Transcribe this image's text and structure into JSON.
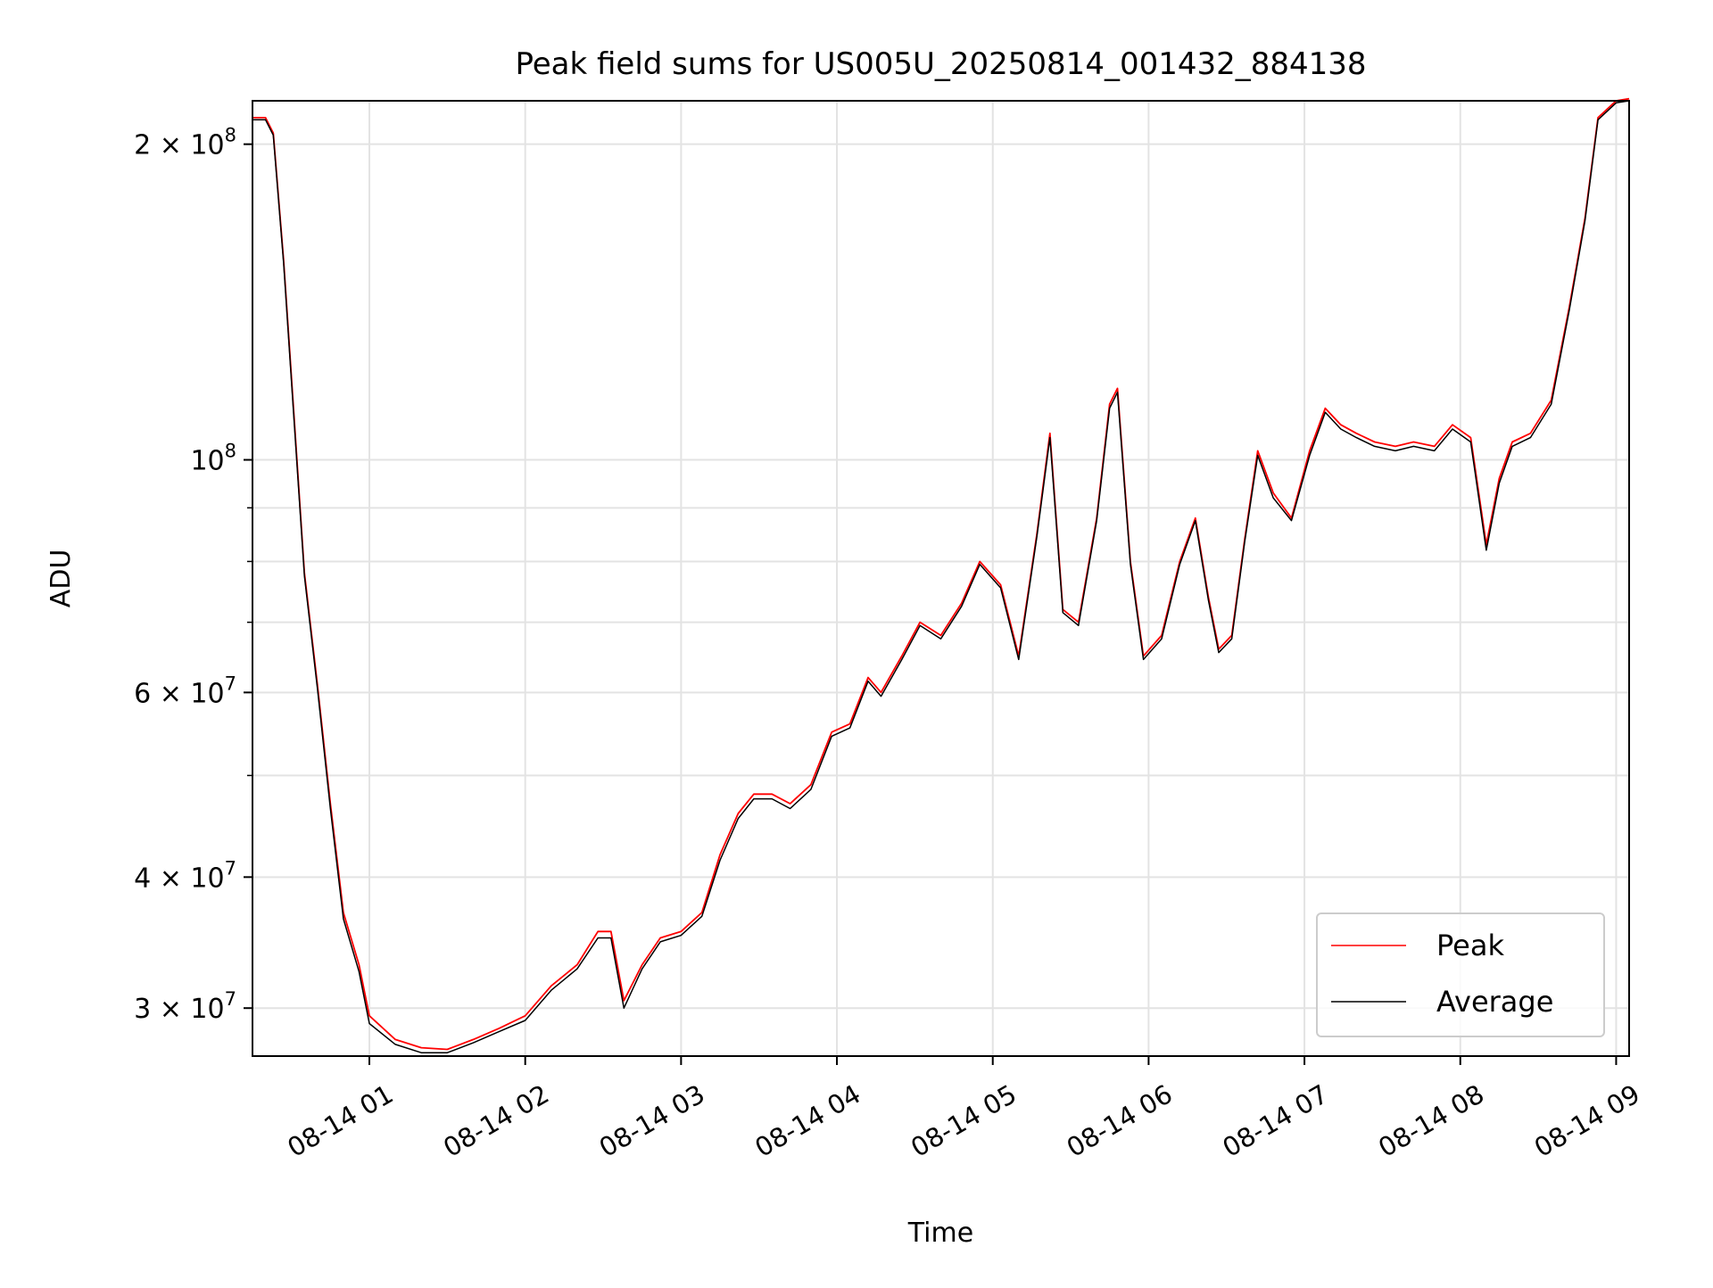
{
  "chart_data": {
    "type": "line",
    "title": "Peak field sums for US005U_20250814_001432_884138",
    "xlabel": "Time",
    "ylabel": "ADU",
    "yscale": "log",
    "ylim": [
      27000000,
      220000000
    ],
    "xlim": [
      "2025-08-14 00:15",
      "2025-08-14 09:05"
    ],
    "x_ticks": [
      "08-14 01",
      "08-14 02",
      "08-14 03",
      "08-14 04",
      "08-14 05",
      "08-14 06",
      "08-14 07",
      "08-14 08",
      "08-14 09"
    ],
    "x_tick_times": [
      "2025-08-14 01:00",
      "2025-08-14 02:00",
      "2025-08-14 03:00",
      "2025-08-14 04:00",
      "2025-08-14 05:00",
      "2025-08-14 06:00",
      "2025-08-14 07:00",
      "2025-08-14 08:00",
      "2025-08-14 09:00"
    ],
    "y_ticks": [
      {
        "value": 30000000,
        "mantissa": "3",
        "exponent": "7"
      },
      {
        "value": 40000000,
        "mantissa": "4",
        "exponent": "7"
      },
      {
        "value": 60000000,
        "mantissa": "6",
        "exponent": "7"
      },
      {
        "value": 100000000,
        "mantissa": "",
        "exponent": "8"
      },
      {
        "value": 200000000,
        "mantissa": "2",
        "exponent": "8"
      }
    ],
    "y_minor_ticks": [
      50000000,
      70000000,
      80000000,
      90000000
    ],
    "grid": true,
    "legend_position": "lower-right",
    "series": [
      {
        "name": "Peak",
        "color": "#ff0000",
        "x": [
          "2025-08-14 00:15",
          "2025-08-14 00:20",
          "2025-08-14 00:23",
          "2025-08-14 00:27",
          "2025-08-14 00:31",
          "2025-08-14 00:35",
          "2025-08-14 00:40",
          "2025-08-14 00:45",
          "2025-08-14 00:50",
          "2025-08-14 00:56",
          "2025-08-14 01:00",
          "2025-08-14 01:10",
          "2025-08-14 01:20",
          "2025-08-14 01:30",
          "2025-08-14 01:40",
          "2025-08-14 01:50",
          "2025-08-14 02:00",
          "2025-08-14 02:10",
          "2025-08-14 02:20",
          "2025-08-14 02:28",
          "2025-08-14 02:33",
          "2025-08-14 02:38",
          "2025-08-14 02:45",
          "2025-08-14 02:52",
          "2025-08-14 03:00",
          "2025-08-14 03:08",
          "2025-08-14 03:15",
          "2025-08-14 03:22",
          "2025-08-14 03:28",
          "2025-08-14 03:35",
          "2025-08-14 03:42",
          "2025-08-14 03:50",
          "2025-08-14 03:58",
          "2025-08-14 04:05",
          "2025-08-14 04:12",
          "2025-08-14 04:17",
          "2025-08-14 04:25",
          "2025-08-14 04:32",
          "2025-08-14 04:40",
          "2025-08-14 04:48",
          "2025-08-14 04:55",
          "2025-08-14 05:03",
          "2025-08-14 05:10",
          "2025-08-14 05:17",
          "2025-08-14 05:22",
          "2025-08-14 05:27",
          "2025-08-14 05:33",
          "2025-08-14 05:40",
          "2025-08-14 05:45",
          "2025-08-14 05:48",
          "2025-08-14 05:53",
          "2025-08-14 05:58",
          "2025-08-14 06:05",
          "2025-08-14 06:12",
          "2025-08-14 06:18",
          "2025-08-14 06:23",
          "2025-08-14 06:27",
          "2025-08-14 06:32",
          "2025-08-14 06:37",
          "2025-08-14 06:42",
          "2025-08-14 06:48",
          "2025-08-14 06:55",
          "2025-08-14 07:02",
          "2025-08-14 07:08",
          "2025-08-14 07:14",
          "2025-08-14 07:20",
          "2025-08-14 07:27",
          "2025-08-14 07:35",
          "2025-08-14 07:42",
          "2025-08-14 07:50",
          "2025-08-14 07:57",
          "2025-08-14 08:04",
          "2025-08-14 08:10",
          "2025-08-14 08:15",
          "2025-08-14 08:20",
          "2025-08-14 08:27",
          "2025-08-14 08:35",
          "2025-08-14 08:42",
          "2025-08-14 08:48",
          "2025-08-14 08:53",
          "2025-08-14 09:00",
          "2025-08-14 09:05"
        ],
        "y": [
          212000000,
          212000000,
          205000000,
          155000000,
          110000000,
          78000000,
          61000000,
          47000000,
          37000000,
          33000000,
          29500000,
          28000000,
          27500000,
          27400000,
          28000000,
          28700000,
          29500000,
          31500000,
          33000000,
          35500000,
          35500000,
          30500000,
          33000000,
          35000000,
          35500000,
          37000000,
          42000000,
          46000000,
          48000000,
          48000000,
          47000000,
          49000000,
          55000000,
          56000000,
          62000000,
          60000000,
          65000000,
          70000000,
          68000000,
          73000000,
          80000000,
          76000000,
          65000000,
          85000000,
          106000000,
          72000000,
          70000000,
          88000000,
          113000000,
          117000000,
          80000000,
          65000000,
          68000000,
          80000000,
          88000000,
          74000000,
          66000000,
          68000000,
          84000000,
          102000000,
          93000000,
          88000000,
          102000000,
          112000000,
          108000000,
          106000000,
          104000000,
          103000000,
          104000000,
          103000000,
          108000000,
          105000000,
          83000000,
          96000000,
          104000000,
          106000000,
          114000000,
          140000000,
          170000000,
          212000000,
          220000000,
          221000000
        ]
      },
      {
        "name": "Average",
        "color": "#000000",
        "x": [
          "2025-08-14 00:15",
          "2025-08-14 00:20",
          "2025-08-14 00:23",
          "2025-08-14 00:27",
          "2025-08-14 00:31",
          "2025-08-14 00:35",
          "2025-08-14 00:40",
          "2025-08-14 00:45",
          "2025-08-14 00:50",
          "2025-08-14 00:56",
          "2025-08-14 01:00",
          "2025-08-14 01:10",
          "2025-08-14 01:20",
          "2025-08-14 01:30",
          "2025-08-14 01:40",
          "2025-08-14 01:50",
          "2025-08-14 02:00",
          "2025-08-14 02:10",
          "2025-08-14 02:20",
          "2025-08-14 02:28",
          "2025-08-14 02:33",
          "2025-08-14 02:38",
          "2025-08-14 02:45",
          "2025-08-14 02:52",
          "2025-08-14 03:00",
          "2025-08-14 03:08",
          "2025-08-14 03:15",
          "2025-08-14 03:22",
          "2025-08-14 03:28",
          "2025-08-14 03:35",
          "2025-08-14 03:42",
          "2025-08-14 03:50",
          "2025-08-14 03:58",
          "2025-08-14 04:05",
          "2025-08-14 04:12",
          "2025-08-14 04:17",
          "2025-08-14 04:25",
          "2025-08-14 04:32",
          "2025-08-14 04:40",
          "2025-08-14 04:48",
          "2025-08-14 04:55",
          "2025-08-14 05:03",
          "2025-08-14 05:10",
          "2025-08-14 05:17",
          "2025-08-14 05:22",
          "2025-08-14 05:27",
          "2025-08-14 05:33",
          "2025-08-14 05:40",
          "2025-08-14 05:45",
          "2025-08-14 05:48",
          "2025-08-14 05:53",
          "2025-08-14 05:58",
          "2025-08-14 06:05",
          "2025-08-14 06:12",
          "2025-08-14 06:18",
          "2025-08-14 06:23",
          "2025-08-14 06:27",
          "2025-08-14 06:32",
          "2025-08-14 06:37",
          "2025-08-14 06:42",
          "2025-08-14 06:48",
          "2025-08-14 06:55",
          "2025-08-14 07:02",
          "2025-08-14 07:08",
          "2025-08-14 07:14",
          "2025-08-14 07:20",
          "2025-08-14 07:27",
          "2025-08-14 07:35",
          "2025-08-14 07:42",
          "2025-08-14 07:50",
          "2025-08-14 07:57",
          "2025-08-14 08:04",
          "2025-08-14 08:10",
          "2025-08-14 08:15",
          "2025-08-14 08:20",
          "2025-08-14 08:27",
          "2025-08-14 08:35",
          "2025-08-14 08:42",
          "2025-08-14 08:48",
          "2025-08-14 08:53",
          "2025-08-14 09:00",
          "2025-08-14 09:05"
        ],
        "y": [
          211000000,
          211000000,
          204000000,
          154000000,
          109000000,
          77500000,
          60500000,
          46500000,
          36500000,
          32500000,
          29000000,
          27700000,
          27200000,
          27200000,
          27800000,
          28500000,
          29200000,
          31200000,
          32700000,
          35000000,
          35000000,
          30000000,
          32700000,
          34700000,
          35200000,
          36700000,
          41500000,
          45500000,
          47500000,
          47500000,
          46500000,
          48500000,
          54500000,
          55500000,
          61500000,
          59500000,
          64500000,
          69500000,
          67500000,
          72500000,
          79500000,
          75500000,
          64500000,
          84500000,
          105000000,
          71500000,
          69500000,
          87500000,
          112000000,
          116000000,
          79500000,
          64500000,
          67500000,
          79500000,
          87500000,
          73500000,
          65500000,
          67500000,
          83500000,
          101000000,
          92000000,
          87500000,
          101000000,
          111000000,
          107000000,
          105000000,
          103000000,
          102000000,
          103000000,
          102000000,
          107000000,
          104000000,
          82000000,
          95000000,
          103000000,
          105000000,
          113000000,
          139000000,
          169000000,
          211000000,
          219000000,
          220000000
        ]
      }
    ]
  }
}
